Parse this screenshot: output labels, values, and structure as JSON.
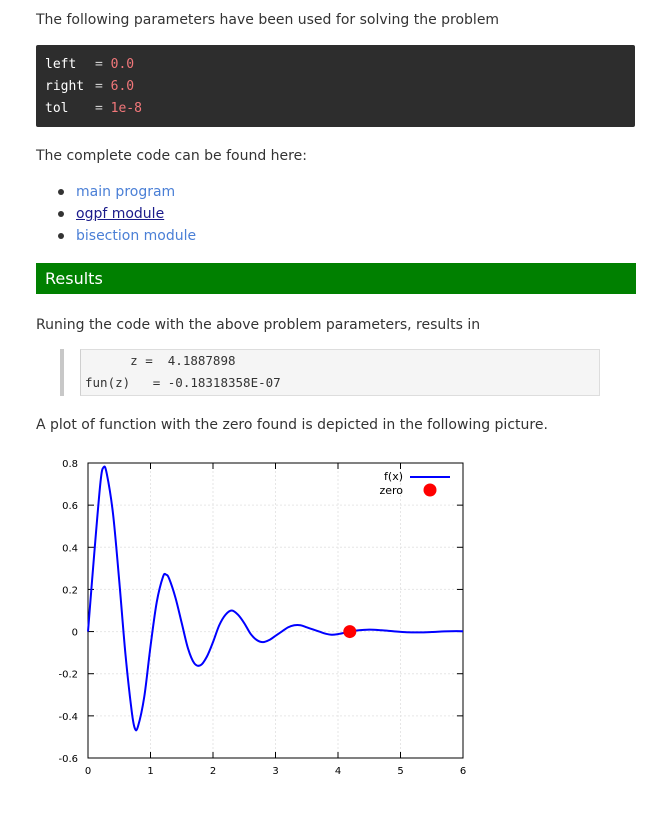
{
  "intro_text": "The following parameters have been used for solving the problem",
  "params": [
    {
      "name": "left",
      "eq": "= ",
      "value": "0.0"
    },
    {
      "name": "right",
      "eq": "= ",
      "value": "6.0"
    },
    {
      "name": "tol",
      "eq": "= ",
      "value": "1e-8"
    }
  ],
  "code_text": "The complete code can be found here:",
  "links": [
    {
      "label": "main program"
    },
    {
      "label": "ogpf module"
    },
    {
      "label": "bisection module"
    }
  ],
  "results_heading": "Results",
  "results_text": "Runing the code with the above problem parameters, results in",
  "output_lines": [
    "      z =  4.1887898",
    "fun(z)   = -0.18318358E-07"
  ],
  "plot_text": "A plot of function with the zero found is depicted in the following picture.",
  "colors": {
    "banner": "#008000",
    "curve": "#0000ff",
    "zero_marker": "#ff0000",
    "link": "#4a7fd6"
  },
  "chart_data": {
    "type": "line",
    "title": "",
    "xlabel": "",
    "ylabel": "",
    "xlim": [
      0,
      6
    ],
    "ylim": [
      -0.6,
      0.8
    ],
    "x_ticks": [
      "0",
      "1",
      "2",
      "3",
      "4",
      "5",
      "6"
    ],
    "y_ticks": [
      "0.8",
      "0.6",
      "0.4",
      "0.2",
      "0",
      "-0.2",
      "-0.4",
      "-0.6"
    ],
    "grid": true,
    "legend_position": "top-right",
    "series": [
      {
        "name": "f(x)",
        "style": "line",
        "points": [
          [
            0,
            0.0
          ],
          [
            0.1,
            0.37
          ],
          [
            0.2,
            0.71
          ],
          [
            0.25,
            0.78
          ],
          [
            0.3,
            0.75
          ],
          [
            0.4,
            0.56
          ],
          [
            0.5,
            0.24
          ],
          [
            0.6,
            -0.11
          ],
          [
            0.7,
            -0.38
          ],
          [
            0.75,
            -0.46
          ],
          [
            0.8,
            -0.45
          ],
          [
            0.9,
            -0.31
          ],
          [
            1.0,
            -0.07
          ],
          [
            1.1,
            0.14
          ],
          [
            1.2,
            0.26
          ],
          [
            1.25,
            0.27
          ],
          [
            1.3,
            0.25
          ],
          [
            1.4,
            0.16
          ],
          [
            1.5,
            0.04
          ],
          [
            1.6,
            -0.08
          ],
          [
            1.7,
            -0.15
          ],
          [
            1.8,
            -0.16
          ],
          [
            1.9,
            -0.12
          ],
          [
            2.0,
            -0.05
          ],
          [
            2.1,
            0.03
          ],
          [
            2.2,
            0.08
          ],
          [
            2.3,
            0.1
          ],
          [
            2.4,
            0.08
          ],
          [
            2.5,
            0.04
          ],
          [
            2.6,
            -0.01
          ],
          [
            2.7,
            -0.04
          ],
          [
            2.8,
            -0.05
          ],
          [
            2.9,
            -0.04
          ],
          [
            3.0,
            -0.02
          ],
          [
            3.1,
            0.0
          ],
          [
            3.2,
            0.02
          ],
          [
            3.3,
            0.03
          ],
          [
            3.4,
            0.03
          ],
          [
            3.5,
            0.02
          ],
          [
            3.6,
            0.01
          ],
          [
            3.7,
            0.0
          ],
          [
            3.8,
            -0.01
          ],
          [
            3.9,
            -0.015
          ],
          [
            4.0,
            -0.012
          ],
          [
            4.1,
            -0.006
          ],
          [
            4.19,
            0.0
          ],
          [
            4.3,
            0.005
          ],
          [
            4.5,
            0.009
          ],
          [
            4.7,
            0.006
          ],
          [
            4.9,
            0.001
          ],
          [
            5.1,
            -0.003
          ],
          [
            5.3,
            -0.004
          ],
          [
            5.5,
            -0.002
          ],
          [
            5.7,
            0.001
          ],
          [
            5.9,
            0.002
          ],
          [
            6.0,
            0.001
          ]
        ]
      },
      {
        "name": "zero",
        "style": "point",
        "points": [
          [
            4.1887898,
            0.0
          ]
        ]
      }
    ]
  }
}
